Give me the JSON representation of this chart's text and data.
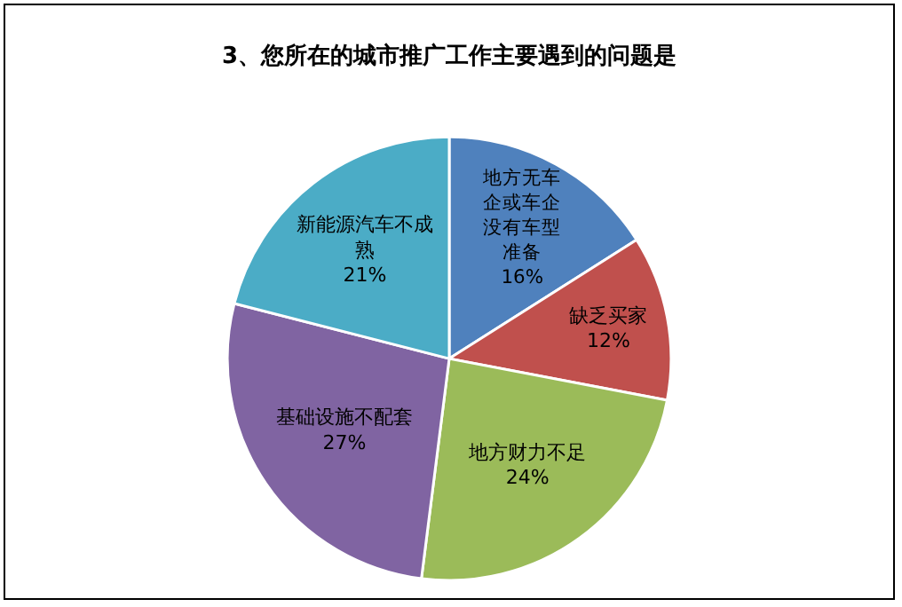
{
  "chart_data": {
    "type": "pie",
    "title": "3、您所在的城市推广工作主要遇到的问题是",
    "categories": [
      "地方无车企或车企没有车型准备",
      "缺乏买家",
      "地方财力不足",
      "基础设施不配套",
      "新能源汽车不成熟"
    ],
    "values": [
      16,
      12,
      24,
      27,
      21
    ],
    "value_labels": [
      "16%",
      "12%",
      "24%",
      "27%",
      "21%"
    ],
    "colors": [
      "#4f81bd",
      "#c0504d",
      "#9bbb59",
      "#8064a2",
      "#4bacc6"
    ],
    "legend": false
  }
}
